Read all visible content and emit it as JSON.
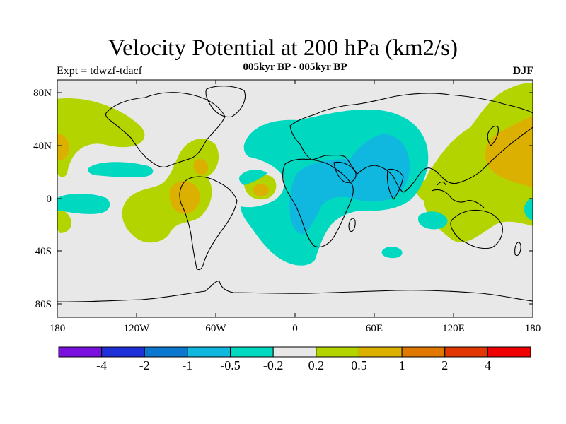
{
  "header": {
    "title": "Velocity Potential at 200 hPa (km2/s)",
    "subtitle": "005kyr BP - 005kyr BP",
    "left_label": "Expt = tdwzf-tdacf",
    "right_label": "DJF"
  },
  "axes": {
    "x_ticks": [
      "180",
      "120W",
      "60W",
      "0",
      "60E",
      "120E",
      "180"
    ],
    "y_ticks": [
      "80N",
      "40N",
      "0",
      "40S",
      "80S"
    ]
  },
  "colorbar": {
    "labels": [
      "-4",
      "-2",
      "-1",
      "-0.5",
      "-0.2",
      "0.2",
      "0.5",
      "1",
      "2",
      "4"
    ],
    "colors": [
      "#7a10e0",
      "#2030d8",
      "#0a78d0",
      "#10b8e0",
      "#00d8c0",
      "#e8e8e8",
      "#b4d400",
      "#dcb000",
      "#e07800",
      "#e03800",
      "#ee0000"
    ]
  },
  "map": {
    "ocean_background": "#e8e8e8",
    "fill_colors": {
      "pos_low": "#b4d400",
      "pos_mid": "#dcb000",
      "pos_high": "#e07800",
      "neg_low": "#00d8c0",
      "neg_mid": "#10b8e0"
    }
  }
}
